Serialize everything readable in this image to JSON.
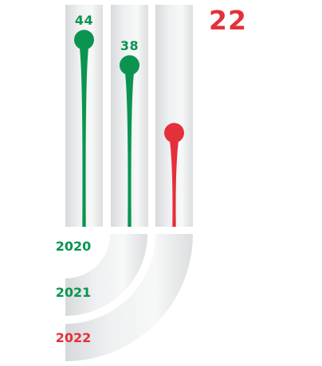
{
  "chart_data": {
    "type": "bar",
    "categories": [
      "2020",
      "2021",
      "2022"
    ],
    "values": [
      44,
      38,
      22
    ],
    "ylim": [
      0,
      50
    ],
    "grid": false,
    "legend": "none",
    "colors": {
      "increase": "#0a9450",
      "decrease": "#e3303a",
      "track": "#e8e9ea"
    },
    "point_colors": [
      "increase",
      "increase",
      "decrease"
    ]
  }
}
